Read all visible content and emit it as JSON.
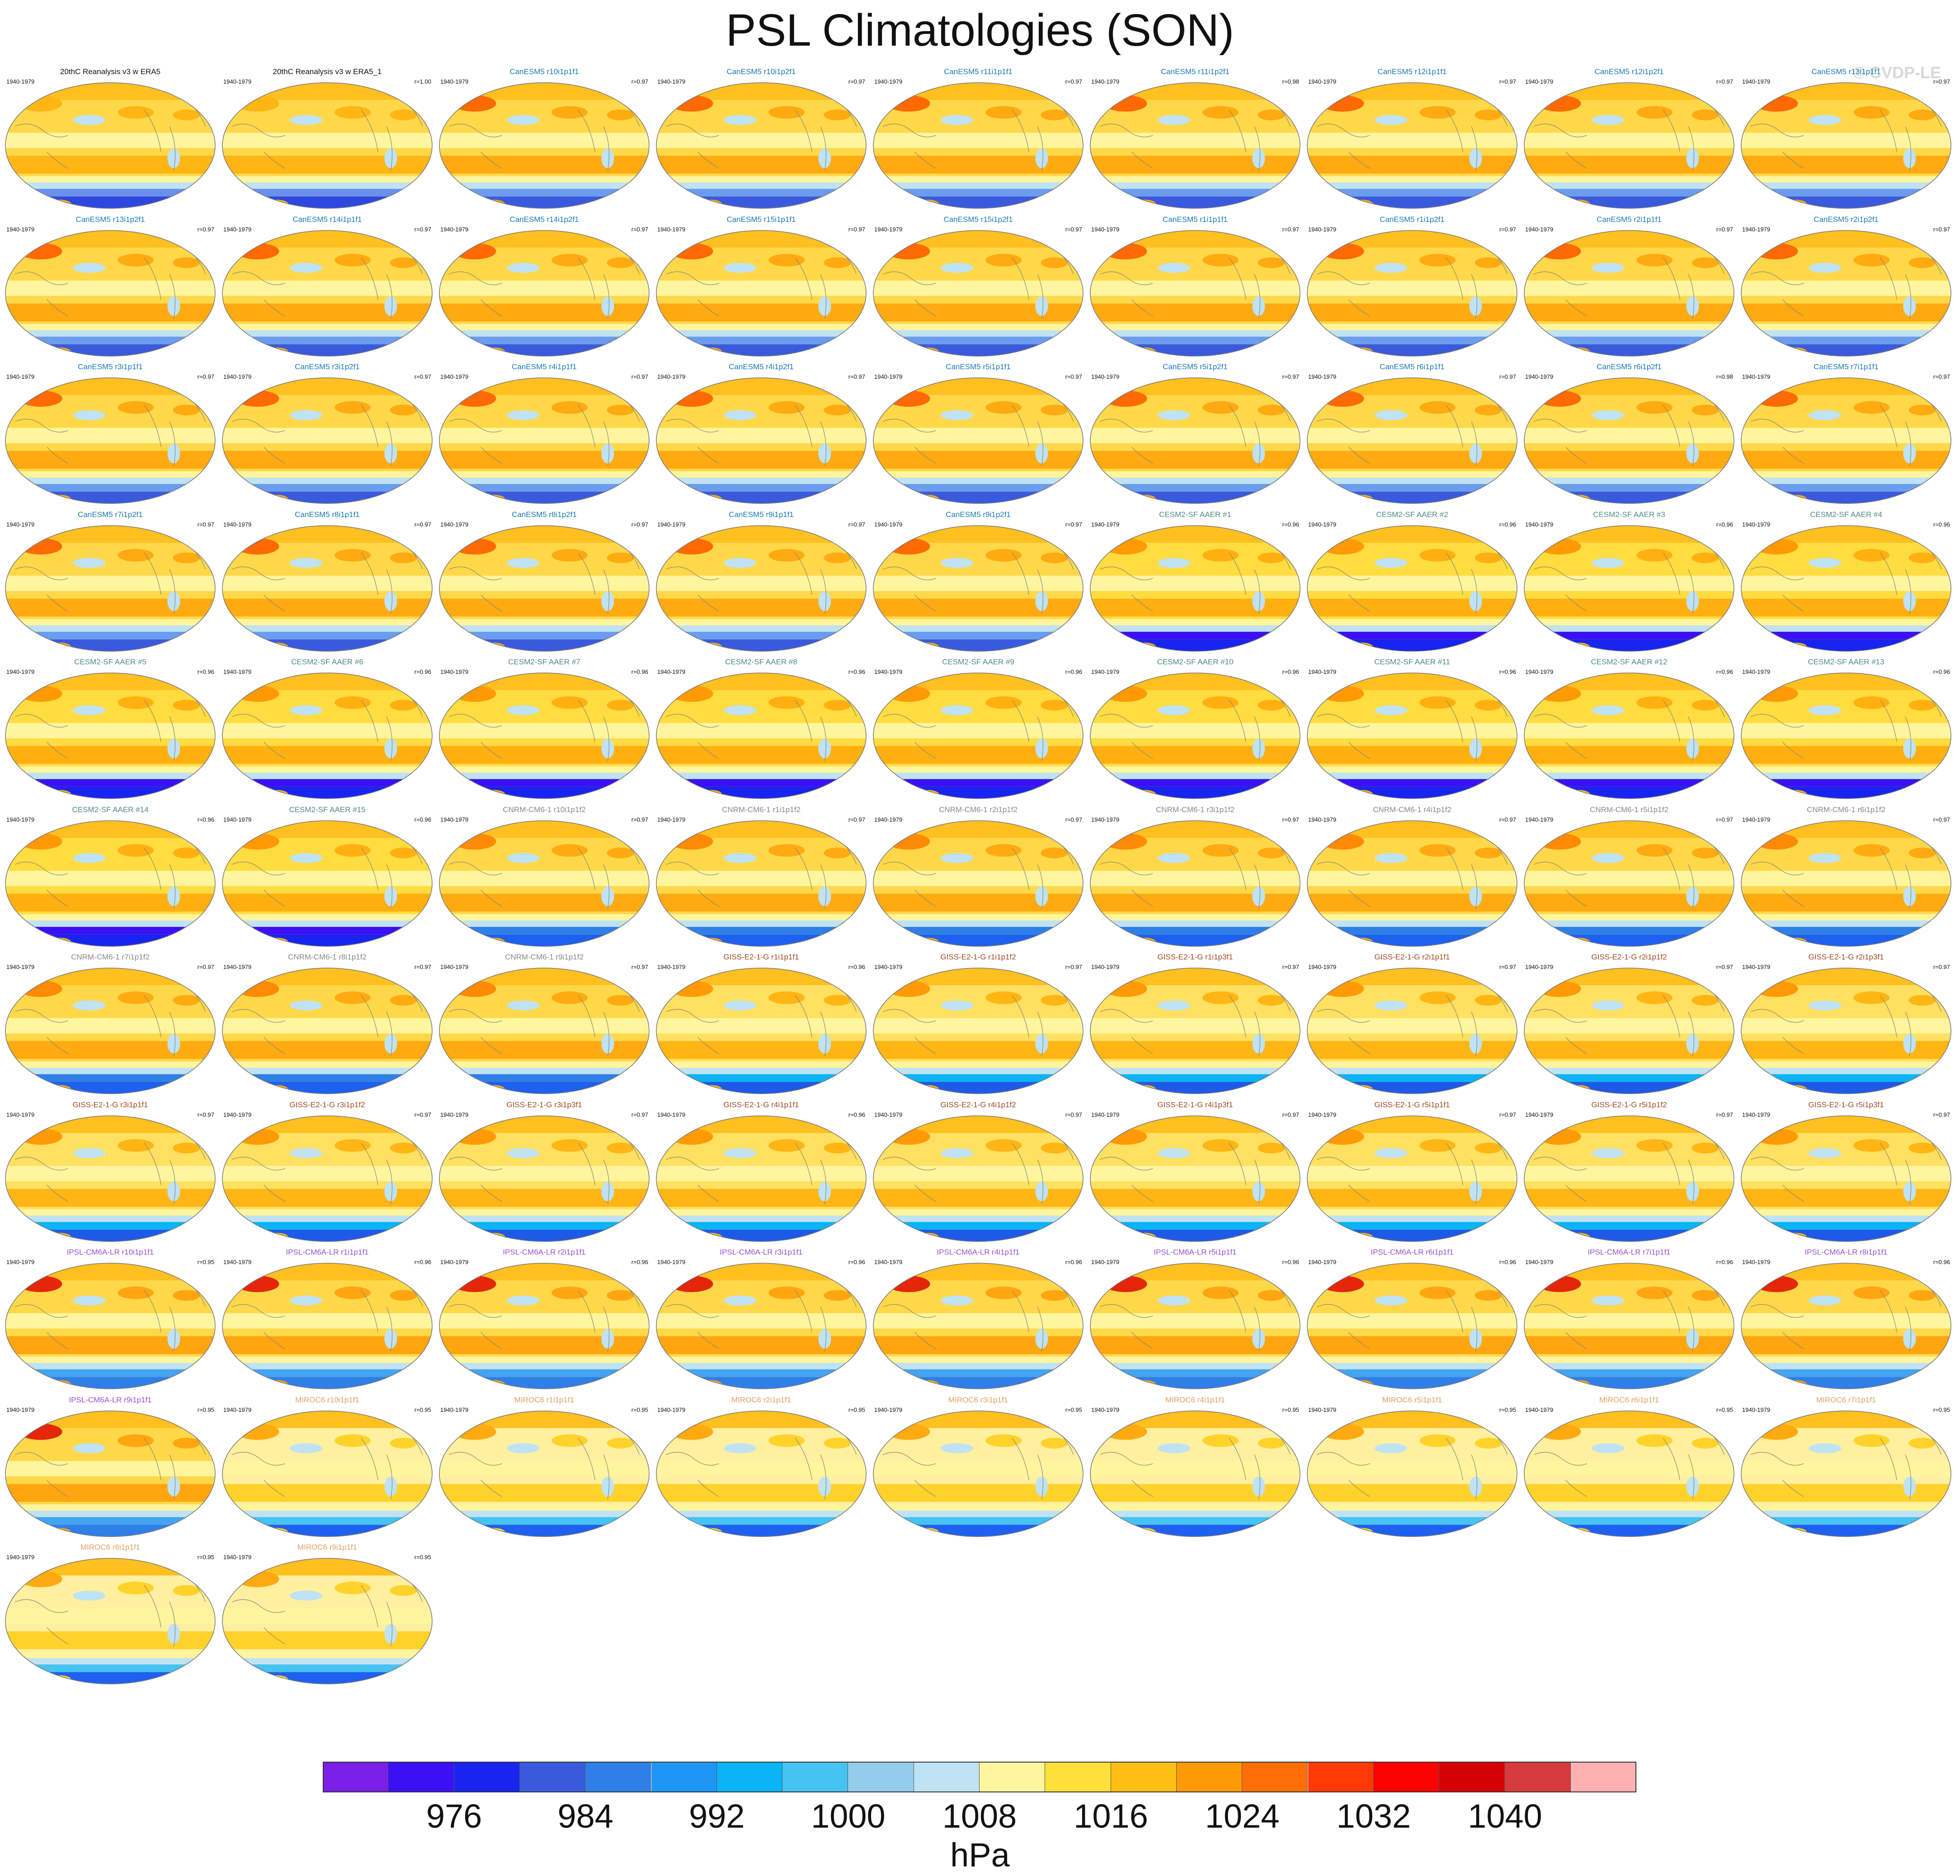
{
  "title": "PSL Climatologies (SON)",
  "watermark": "© CVDP-LE",
  "colors": {
    "obs": "#111111",
    "CanESM5": "#1a7ab5",
    "CESM2": "#4f8a8b",
    "CNRM": "#888888",
    "GISS": "#a04a25",
    "IPSL": "#9a4fd0",
    "MIROC": "#e0a060"
  },
  "chart_data": {
    "type": "heatmap",
    "description_type": "map-panels",
    "panels": [
      {
        "title": "20thC Reanalysis v3 w ERA5",
        "years": "1940-1979",
        "corr": "",
        "group": "obs"
      },
      {
        "title": "20thC Reanalysis v3 w ERA5_1",
        "years": "1940-1979",
        "corr": "r=1.00",
        "group": "obs"
      },
      {
        "title": "CanESM5 r10i1p1f1",
        "years": "1940-1979",
        "corr": "r=0.97",
        "group": "CanESM5"
      },
      {
        "title": "CanESM5 r10i1p2f1",
        "years": "1940-1979",
        "corr": "r=0.97",
        "group": "CanESM5"
      },
      {
        "title": "CanESM5 r11i1p1f1",
        "years": "1940-1979",
        "corr": "r=0.97",
        "group": "CanESM5"
      },
      {
        "title": "CanESM5 r11i1p2f1",
        "years": "1940-1979",
        "corr": "r=0.98",
        "group": "CanESM5"
      },
      {
        "title": "CanESM5 r12i1p1f1",
        "years": "1940-1979",
        "corr": "r=0.97",
        "group": "CanESM5"
      },
      {
        "title": "CanESM5 r12i1p2f1",
        "years": "1940-1979",
        "corr": "r=0.97",
        "group": "CanESM5"
      },
      {
        "title": "CanESM5 r13i1p1f1",
        "years": "1940-1979",
        "corr": "r=0.97",
        "group": "CanESM5"
      },
      {
        "title": "CanESM5 r13i1p2f1",
        "years": "1940-1979",
        "corr": "r=0.97",
        "group": "CanESM5"
      },
      {
        "title": "CanESM5 r14i1p1f1",
        "years": "1940-1979",
        "corr": "r=0.97",
        "group": "CanESM5"
      },
      {
        "title": "CanESM5 r14i1p2f1",
        "years": "1940-1979",
        "corr": "r=0.97",
        "group": "CanESM5"
      },
      {
        "title": "CanESM5 r15i1p1f1",
        "years": "1940-1979",
        "corr": "r=0.97",
        "group": "CanESM5"
      },
      {
        "title": "CanESM5 r15i1p2f1",
        "years": "1940-1979",
        "corr": "r=0.97",
        "group": "CanESM5"
      },
      {
        "title": "CanESM5 r1i1p1f1",
        "years": "1940-1979",
        "corr": "r=0.97",
        "group": "CanESM5"
      },
      {
        "title": "CanESM5 r1i1p2f1",
        "years": "1940-1979",
        "corr": "r=0.97",
        "group": "CanESM5"
      },
      {
        "title": "CanESM5 r2i1p1f1",
        "years": "1940-1979",
        "corr": "r=0.97",
        "group": "CanESM5"
      },
      {
        "title": "CanESM5 r2i1p2f1",
        "years": "1940-1979",
        "corr": "r=0.97",
        "group": "CanESM5"
      },
      {
        "title": "CanESM5 r3i1p1f1",
        "years": "1940-1979",
        "corr": "r=0.97",
        "group": "CanESM5"
      },
      {
        "title": "CanESM5 r3i1p2f1",
        "years": "1940-1979",
        "corr": "r=0.97",
        "group": "CanESM5"
      },
      {
        "title": "CanESM5 r4i1p1f1",
        "years": "1940-1979",
        "corr": "r=0.97",
        "group": "CanESM5"
      },
      {
        "title": "CanESM5 r4i1p2f1",
        "years": "1940-1979",
        "corr": "r=0.97",
        "group": "CanESM5"
      },
      {
        "title": "CanESM5 r5i1p1f1",
        "years": "1940-1979",
        "corr": "r=0.97",
        "group": "CanESM5"
      },
      {
        "title": "CanESM5 r5i1p2f1",
        "years": "1940-1979",
        "corr": "r=0.97",
        "group": "CanESM5"
      },
      {
        "title": "CanESM5 r6i1p1f1",
        "years": "1940-1979",
        "corr": "r=0.97",
        "group": "CanESM5"
      },
      {
        "title": "CanESM5 r6i1p2f1",
        "years": "1940-1979",
        "corr": "r=0.98",
        "group": "CanESM5"
      },
      {
        "title": "CanESM5 r7i1p1f1",
        "years": "1940-1979",
        "corr": "r=0.97",
        "group": "CanESM5"
      },
      {
        "title": "CanESM5 r7i1p2f1",
        "years": "1940-1979",
        "corr": "r=0.97",
        "group": "CanESM5"
      },
      {
        "title": "CanESM5 r8i1p1f1",
        "years": "1940-1979",
        "corr": "r=0.97",
        "group": "CanESM5"
      },
      {
        "title": "CanESM5 r8i1p2f1",
        "years": "1940-1979",
        "corr": "r=0.97",
        "group": "CanESM5"
      },
      {
        "title": "CanESM5 r9i1p1f1",
        "years": "1940-1979",
        "corr": "r=0.97",
        "group": "CanESM5"
      },
      {
        "title": "CanESM5 r9i1p2f1",
        "years": "1940-1979",
        "corr": "r=0.97",
        "group": "CanESM5"
      },
      {
        "title": "CESM2-SF AAER #1",
        "years": "1940-1979",
        "corr": "r=0.96",
        "group": "CESM2"
      },
      {
        "title": "CESM2-SF AAER #2",
        "years": "1940-1979",
        "corr": "r=0.96",
        "group": "CESM2"
      },
      {
        "title": "CESM2-SF AAER #3",
        "years": "1940-1979",
        "corr": "r=0.96",
        "group": "CESM2"
      },
      {
        "title": "CESM2-SF AAER #4",
        "years": "1940-1979",
        "corr": "r=0.96",
        "group": "CESM2"
      },
      {
        "title": "CESM2-SF AAER #5",
        "years": "1940-1979",
        "corr": "r=0.96",
        "group": "CESM2"
      },
      {
        "title": "CESM2-SF AAER #6",
        "years": "1940-1979",
        "corr": "r=0.96",
        "group": "CESM2"
      },
      {
        "title": "CESM2-SF AAER #7",
        "years": "1940-1979",
        "corr": "r=0.96",
        "group": "CESM2"
      },
      {
        "title": "CESM2-SF AAER #8",
        "years": "1940-1979",
        "corr": "r=0.96",
        "group": "CESM2"
      },
      {
        "title": "CESM2-SF AAER #9",
        "years": "1940-1979",
        "corr": "r=0.96",
        "group": "CESM2"
      },
      {
        "title": "CESM2-SF AAER #10",
        "years": "1940-1979",
        "corr": "r=0.96",
        "group": "CESM2"
      },
      {
        "title": "CESM2-SF AAER #11",
        "years": "1940-1979",
        "corr": "r=0.96",
        "group": "CESM2"
      },
      {
        "title": "CESM2-SF AAER #12",
        "years": "1940-1979",
        "corr": "r=0.96",
        "group": "CESM2"
      },
      {
        "title": "CESM2-SF AAER #13",
        "years": "1940-1979",
        "corr": "r=0.96",
        "group": "CESM2"
      },
      {
        "title": "CESM2-SF AAER #14",
        "years": "1940-1979",
        "corr": "r=0.96",
        "group": "CESM2"
      },
      {
        "title": "CESM2-SF AAER #15",
        "years": "1940-1979",
        "corr": "r=0.96",
        "group": "CESM2"
      },
      {
        "title": "CNRM-CM6-1 r10i1p1f2",
        "years": "1940-1979",
        "corr": "r=0.97",
        "group": "CNRM"
      },
      {
        "title": "CNRM-CM6-1 r1i1p1f2",
        "years": "1940-1979",
        "corr": "r=0.97",
        "group": "CNRM"
      },
      {
        "title": "CNRM-CM6-1 r2i1p1f2",
        "years": "1940-1979",
        "corr": "r=0.97",
        "group": "CNRM"
      },
      {
        "title": "CNRM-CM6-1 r3i1p1f2",
        "years": "1940-1979",
        "corr": "r=0.97",
        "group": "CNRM"
      },
      {
        "title": "CNRM-CM6-1 r4i1p1f2",
        "years": "1940-1979",
        "corr": "r=0.97",
        "group": "CNRM"
      },
      {
        "title": "CNRM-CM6-1 r5i1p1f2",
        "years": "1940-1979",
        "corr": "r=0.97",
        "group": "CNRM"
      },
      {
        "title": "CNRM-CM6-1 r6i1p1f2",
        "years": "1940-1979",
        "corr": "r=0.97",
        "group": "CNRM"
      },
      {
        "title": "CNRM-CM6-1 r7i1p1f2",
        "years": "1940-1979",
        "corr": "r=0.97",
        "group": "CNRM"
      },
      {
        "title": "CNRM-CM6-1 r8i1p1f2",
        "years": "1940-1979",
        "corr": "r=0.97",
        "group": "CNRM"
      },
      {
        "title": "CNRM-CM6-1 r9i1p1f2",
        "years": "1940-1979",
        "corr": "r=0.97",
        "group": "CNRM"
      },
      {
        "title": "GISS-E2-1-G r1i1p1f1",
        "years": "1940-1979",
        "corr": "r=0.96",
        "group": "GISS"
      },
      {
        "title": "GISS-E2-1-G r1i1p1f2",
        "years": "1940-1979",
        "corr": "r=0.97",
        "group": "GISS"
      },
      {
        "title": "GISS-E2-1-G r1i1p3f1",
        "years": "1940-1979",
        "corr": "r=0.97",
        "group": "GISS"
      },
      {
        "title": "GISS-E2-1-G r2i1p1f1",
        "years": "1940-1979",
        "corr": "r=0.97",
        "group": "GISS"
      },
      {
        "title": "GISS-E2-1-G r2i1p1f2",
        "years": "1940-1979",
        "corr": "r=0.97",
        "group": "GISS"
      },
      {
        "title": "GISS-E2-1-G r2i1p3f1",
        "years": "1940-1979",
        "corr": "r=0.97",
        "group": "GISS"
      },
      {
        "title": "GISS-E2-1-G r3i1p1f1",
        "years": "1940-1979",
        "corr": "r=0.97",
        "group": "GISS"
      },
      {
        "title": "GISS-E2-1-G r3i1p1f2",
        "years": "1940-1979",
        "corr": "r=0.97",
        "group": "GISS"
      },
      {
        "title": "GISS-E2-1-G r3i1p3f1",
        "years": "1940-1979",
        "corr": "r=0.97",
        "group": "GISS"
      },
      {
        "title": "GISS-E2-1-G r4i1p1f1",
        "years": "1940-1979",
        "corr": "r=0.96",
        "group": "GISS"
      },
      {
        "title": "GISS-E2-1-G r4i1p1f2",
        "years": "1940-1979",
        "corr": "r=0.97",
        "group": "GISS"
      },
      {
        "title": "GISS-E2-1-G r4i1p3f1",
        "years": "1940-1979",
        "corr": "r=0.97",
        "group": "GISS"
      },
      {
        "title": "GISS-E2-1-G r5i1p1f1",
        "years": "1940-1979",
        "corr": "r=0.97",
        "group": "GISS"
      },
      {
        "title": "GISS-E2-1-G r5i1p1f2",
        "years": "1940-1979",
        "corr": "r=0.97",
        "group": "GISS"
      },
      {
        "title": "GISS-E2-1-G r5i1p3f1",
        "years": "1940-1979",
        "corr": "r=0.97",
        "group": "GISS"
      },
      {
        "title": "IPSL-CM6A-LR r10i1p1f1",
        "years": "1940-1979",
        "corr": "r=0.95",
        "group": "IPSL"
      },
      {
        "title": "IPSL-CM6A-LR r1i1p1f1",
        "years": "1940-1979",
        "corr": "r=0.96",
        "group": "IPSL"
      },
      {
        "title": "IPSL-CM6A-LR r2i1p1f1",
        "years": "1940-1979",
        "corr": "r=0.96",
        "group": "IPSL"
      },
      {
        "title": "IPSL-CM6A-LR r3i1p1f1",
        "years": "1940-1979",
        "corr": "r=0.96",
        "group": "IPSL"
      },
      {
        "title": "IPSL-CM6A-LR r4i1p1f1",
        "years": "1940-1979",
        "corr": "r=0.96",
        "group": "IPSL"
      },
      {
        "title": "IPSL-CM6A-LR r5i1p1f1",
        "years": "1940-1979",
        "corr": "r=0.96",
        "group": "IPSL"
      },
      {
        "title": "IPSL-CM6A-LR r6i1p1f1",
        "years": "1940-1979",
        "corr": "r=0.96",
        "group": "IPSL"
      },
      {
        "title": "IPSL-CM6A-LR r7i1p1f1",
        "years": "1940-1979",
        "corr": "r=0.96",
        "group": "IPSL"
      },
      {
        "title": "IPSL-CM6A-LR r8i1p1f1",
        "years": "1940-1979",
        "corr": "r=0.96",
        "group": "IPSL"
      },
      {
        "title": "IPSL-CM6A-LR r9i1p1f1",
        "years": "1940-1979",
        "corr": "r=0.95",
        "group": "IPSL"
      },
      {
        "title": "MIROC6 r10i1p1f1",
        "years": "1940-1979",
        "corr": "r=0.95",
        "group": "MIROC"
      },
      {
        "title": "MIROC6 r1i1p1f1",
        "years": "1940-1979",
        "corr": "r=0.95",
        "group": "MIROC"
      },
      {
        "title": "MIROC6 r2i1p1f1",
        "years": "1940-1979",
        "corr": "r=0.95",
        "group": "MIROC"
      },
      {
        "title": "MIROC6 r3i1p1f1",
        "years": "1940-1979",
        "corr": "r=0.95",
        "group": "MIROC"
      },
      {
        "title": "MIROC6 r4i1p1f1",
        "years": "1940-1979",
        "corr": "r=0.95",
        "group": "MIROC"
      },
      {
        "title": "MIROC6 r5i1p1f1",
        "years": "1940-1979",
        "corr": "r=0.95",
        "group": "MIROC"
      },
      {
        "title": "MIROC6 r6i1p1f1",
        "years": "1940-1979",
        "corr": "r=0.95",
        "group": "MIROC"
      },
      {
        "title": "MIROC6 r7i1p1f1",
        "years": "1940-1979",
        "corr": "r=0.95",
        "group": "MIROC"
      },
      {
        "title": "MIROC6 r8i1p1f1",
        "years": "1940-1979",
        "corr": "r=0.95",
        "group": "MIROC"
      },
      {
        "title": "MIROC6 r9i1p1f1",
        "years": "1940-1979",
        "corr": "r=0.95",
        "group": "MIROC"
      }
    ],
    "colorbar": {
      "units": "hPa",
      "levels": [
        972,
        976,
        980,
        984,
        988,
        992,
        996,
        1000,
        1004,
        1008,
        1012,
        1016,
        1020,
        1024,
        1028,
        1032,
        1036,
        1040,
        1044
      ],
      "tick_labels": [
        "976",
        "984",
        "992",
        "1000",
        "1008",
        "1016",
        "1024",
        "1032",
        "1040"
      ],
      "colors": [
        "#7a1fe8",
        "#3b10f5",
        "#1824f0",
        "#3a5ade",
        "#2f7fe8",
        "#1e96f5",
        "#0ab4f7",
        "#45c3f2",
        "#92cdec",
        "#bfe2f4",
        "#fff59e",
        "#ffdf3a",
        "#ffbe14",
        "#ff9a05",
        "#ff6e05",
        "#ff3a05",
        "#fe0202",
        "#d40202",
        "#d73a3a",
        "#ffb0b0"
      ]
    }
  }
}
